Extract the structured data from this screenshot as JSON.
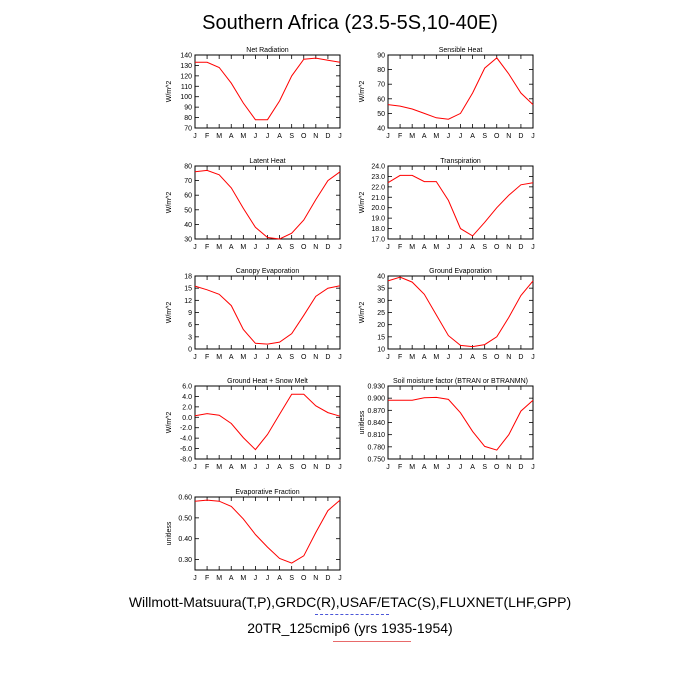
{
  "page": {
    "title": "Southern Africa (23.5-5S,10-40E)",
    "footer_line1": "Willmott-Matsuura(T,P),GRDC(R),USAF/ETAC(S),FLUXNET(LHF,GPP)",
    "footer_line2": "20TR_125cmip6 (yrs 1935-1954)",
    "footer_line1_rule_color": "#4b56d8",
    "footer_line2_rule_color": "#e86a6a"
  },
  "chart_data": [
    {
      "type": "line",
      "title": "Net Radiation",
      "ylabel": "W/m^2",
      "x": [
        "J",
        "F",
        "M",
        "A",
        "M",
        "J",
        "J",
        "A",
        "S",
        "O",
        "N",
        "D",
        "J"
      ],
      "yticks": [
        "70",
        "80",
        "90",
        "100",
        "110",
        "120",
        "130",
        "140"
      ],
      "ylim": [
        70,
        140
      ],
      "series": [
        {
          "color": "#ff0000",
          "values": [
            133,
            133,
            128,
            113,
            94,
            78,
            78,
            96,
            120,
            136,
            137,
            135,
            133
          ]
        }
      ]
    },
    {
      "type": "line",
      "title": "Sensible Heat",
      "ylabel": "W/m^2",
      "x": [
        "J",
        "F",
        "M",
        "A",
        "M",
        "J",
        "J",
        "A",
        "S",
        "O",
        "N",
        "D",
        "J"
      ],
      "yticks": [
        "40",
        "50",
        "60",
        "70",
        "80",
        "90"
      ],
      "ylim": [
        40,
        90
      ],
      "series": [
        {
          "color": "#ff0000",
          "values": [
            56,
            55,
            53,
            50,
            47,
            46,
            50,
            64,
            81,
            88,
            77,
            64,
            56
          ]
        }
      ]
    },
    {
      "type": "line",
      "title": "Latent Heat",
      "ylabel": "W/m^2",
      "x": [
        "J",
        "F",
        "M",
        "A",
        "M",
        "J",
        "J",
        "A",
        "S",
        "O",
        "N",
        "D",
        "J"
      ],
      "yticks": [
        "30",
        "40",
        "50",
        "60",
        "70",
        "80"
      ],
      "ylim": [
        30,
        80
      ],
      "series": [
        {
          "color": "#ff0000",
          "values": [
            76,
            77,
            74,
            65,
            51,
            38,
            31,
            30,
            34,
            43,
            57,
            70,
            76
          ]
        }
      ]
    },
    {
      "type": "line",
      "title": "Transpiration",
      "ylabel": "W/m^2",
      "x": [
        "J",
        "F",
        "M",
        "A",
        "M",
        "J",
        "J",
        "A",
        "S",
        "O",
        "N",
        "D",
        "J"
      ],
      "yticks": [
        "17.0",
        "18.0",
        "19.0",
        "20.0",
        "21.0",
        "22.0",
        "23.0",
        "24.0"
      ],
      "ylim": [
        17,
        24
      ],
      "series": [
        {
          "color": "#ff0000",
          "values": [
            22.4,
            23.1,
            23.1,
            22.5,
            22.5,
            20.7,
            18.0,
            17.3,
            18.6,
            20.0,
            21.2,
            22.2,
            22.4
          ]
        }
      ]
    },
    {
      "type": "line",
      "title": "Canopy Evaporation",
      "ylabel": "W/m^2",
      "x": [
        "J",
        "F",
        "M",
        "A",
        "M",
        "J",
        "J",
        "A",
        "S",
        "O",
        "N",
        "D",
        "J"
      ],
      "yticks": [
        "0",
        "3",
        "6",
        "9",
        "12",
        "15",
        "18"
      ],
      "ylim": [
        0,
        18
      ],
      "series": [
        {
          "color": "#ff0000",
          "values": [
            15.5,
            14.6,
            13.5,
            10.7,
            4.8,
            1.4,
            1.2,
            1.7,
            3.8,
            8.3,
            13.0,
            15.0,
            15.6
          ]
        }
      ]
    },
    {
      "type": "line",
      "title": "Ground Evaporation",
      "ylabel": "W/m^2",
      "x": [
        "J",
        "F",
        "M",
        "A",
        "M",
        "J",
        "J",
        "A",
        "S",
        "O",
        "N",
        "D",
        "J"
      ],
      "yticks": [
        "10",
        "15",
        "20",
        "25",
        "30",
        "35",
        "40"
      ],
      "ylim": [
        10,
        40
      ],
      "series": [
        {
          "color": "#ff0000",
          "values": [
            38,
            39.5,
            37.5,
            32.5,
            24,
            15.5,
            11.5,
            11,
            11.8,
            15,
            23,
            32,
            38
          ]
        }
      ]
    },
    {
      "type": "line",
      "title": "Ground Heat + Snow Melt",
      "ylabel": "W/m^2",
      "x": [
        "J",
        "F",
        "M",
        "A",
        "M",
        "J",
        "J",
        "A",
        "S",
        "O",
        "N",
        "D",
        "J"
      ],
      "yticks": [
        "-8.0",
        "-6.0",
        "-4.0",
        "-2.0",
        "0.0",
        "2.0",
        "4.0",
        "6.0"
      ],
      "ylim": [
        -8,
        6
      ],
      "series": [
        {
          "color": "#ff0000",
          "values": [
            0.3,
            0.7,
            0.4,
            -1.2,
            -3.9,
            -6.2,
            -3.3,
            0.6,
            4.4,
            4.4,
            2.2,
            0.9,
            0.2
          ]
        }
      ]
    },
    {
      "type": "line",
      "title": "Soil moisture factor (BTRAN or BTRANMN)",
      "ylabel": "unitless",
      "x": [
        "J",
        "F",
        "M",
        "A",
        "M",
        "J",
        "J",
        "A",
        "S",
        "O",
        "N",
        "D",
        "J"
      ],
      "yticks": [
        "0.750",
        "0.780",
        "0.810",
        "0.840",
        "0.870",
        "0.900",
        "0.930"
      ],
      "ylim": [
        0.75,
        0.93
      ],
      "series": [
        {
          "color": "#ff0000",
          "values": [
            0.895,
            0.895,
            0.895,
            0.901,
            0.902,
            0.897,
            0.864,
            0.818,
            0.781,
            0.772,
            0.81,
            0.868,
            0.895
          ]
        }
      ]
    },
    {
      "type": "line",
      "title": "Evaporative Fraction",
      "ylabel": "unitless",
      "x": [
        "J",
        "F",
        "M",
        "A",
        "M",
        "J",
        "J",
        "A",
        "S",
        "O",
        "N",
        "D",
        "J"
      ],
      "yticks": [
        "0.30",
        "0.40",
        "0.50",
        "0.60"
      ],
      "ylim": [
        0.25,
        0.6
      ],
      "series": [
        {
          "color": "#ff0000",
          "values": [
            0.58,
            0.585,
            0.58,
            0.555,
            0.495,
            0.42,
            0.36,
            0.305,
            0.283,
            0.318,
            0.43,
            0.535,
            0.585
          ]
        }
      ]
    }
  ]
}
